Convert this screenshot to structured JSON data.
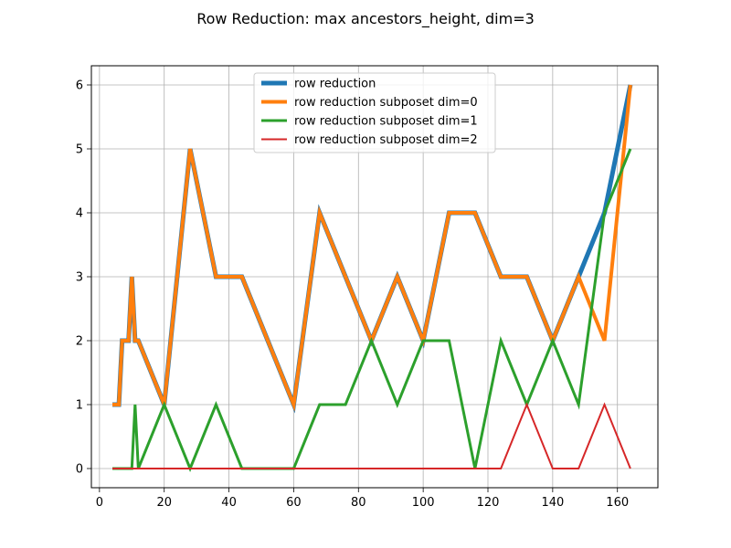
{
  "chart_data": {
    "type": "line",
    "title": "Row Reduction: max ancestors_height, dim=3",
    "xlabel": "",
    "ylabel": "",
    "xlim": [
      -2.5,
      172.5
    ],
    "ylim": [
      -0.3,
      6.3
    ],
    "xticks": [
      0,
      20,
      40,
      60,
      80,
      100,
      120,
      140,
      160
    ],
    "yticks": [
      0,
      1,
      2,
      3,
      4,
      5,
      6
    ],
    "grid": true,
    "legend_position": "upper center",
    "series": [
      {
        "name": "row reduction",
        "color": "#1f77b4",
        "width": 5,
        "x": [
          4,
          6,
          7,
          9,
          10,
          11,
          12,
          20,
          28,
          36,
          40,
          44,
          52,
          60,
          68,
          76,
          84,
          92,
          100,
          108,
          112,
          116,
          124,
          128,
          132,
          140,
          148,
          156,
          164
        ],
        "y": [
          1,
          1,
          2,
          2,
          3,
          2,
          2,
          1,
          5,
          3,
          3,
          3,
          2,
          1,
          4,
          3,
          2,
          3,
          2,
          4,
          4,
          4,
          3,
          3,
          3,
          2,
          3,
          4,
          6
        ]
      },
      {
        "name": "row reduction subposet dim=0",
        "color": "#ff7f0e",
        "width": 4,
        "x": [
          4,
          6,
          7,
          9,
          10,
          11,
          12,
          20,
          28,
          36,
          40,
          44,
          52,
          60,
          68,
          76,
          84,
          92,
          100,
          108,
          112,
          116,
          124,
          128,
          132,
          140,
          148,
          156,
          164
        ],
        "y": [
          1,
          1,
          2,
          2,
          3,
          2,
          2,
          1,
          5,
          3,
          3,
          3,
          2,
          1,
          4,
          3,
          2,
          3,
          2,
          4,
          4,
          4,
          3,
          3,
          3,
          2,
          3,
          2,
          6
        ]
      },
      {
        "name": "row reduction subposet dim=1",
        "color": "#2ca02c",
        "width": 3,
        "x": [
          4,
          8,
          10,
          11,
          12,
          20,
          28,
          36,
          44,
          52,
          60,
          68,
          76,
          84,
          92,
          100,
          108,
          116,
          124,
          132,
          140,
          148,
          156,
          164
        ],
        "y": [
          0,
          0,
          0,
          1,
          0,
          1,
          0,
          1,
          0,
          0,
          0,
          1,
          1,
          2,
          1,
          2,
          2,
          0,
          2,
          1,
          2,
          1,
          4,
          5
        ]
      },
      {
        "name": "row reduction subposet dim=2",
        "color": "#d62728",
        "width": 2,
        "x": [
          4,
          12,
          20,
          28,
          36,
          44,
          52,
          60,
          68,
          76,
          84,
          92,
          100,
          108,
          116,
          124,
          132,
          140,
          148,
          156,
          164
        ],
        "y": [
          0,
          0,
          0,
          0,
          0,
          0,
          0,
          0,
          0,
          0,
          0,
          0,
          0,
          0,
          0,
          0,
          1,
          0,
          0,
          1,
          0
        ]
      }
    ]
  }
}
